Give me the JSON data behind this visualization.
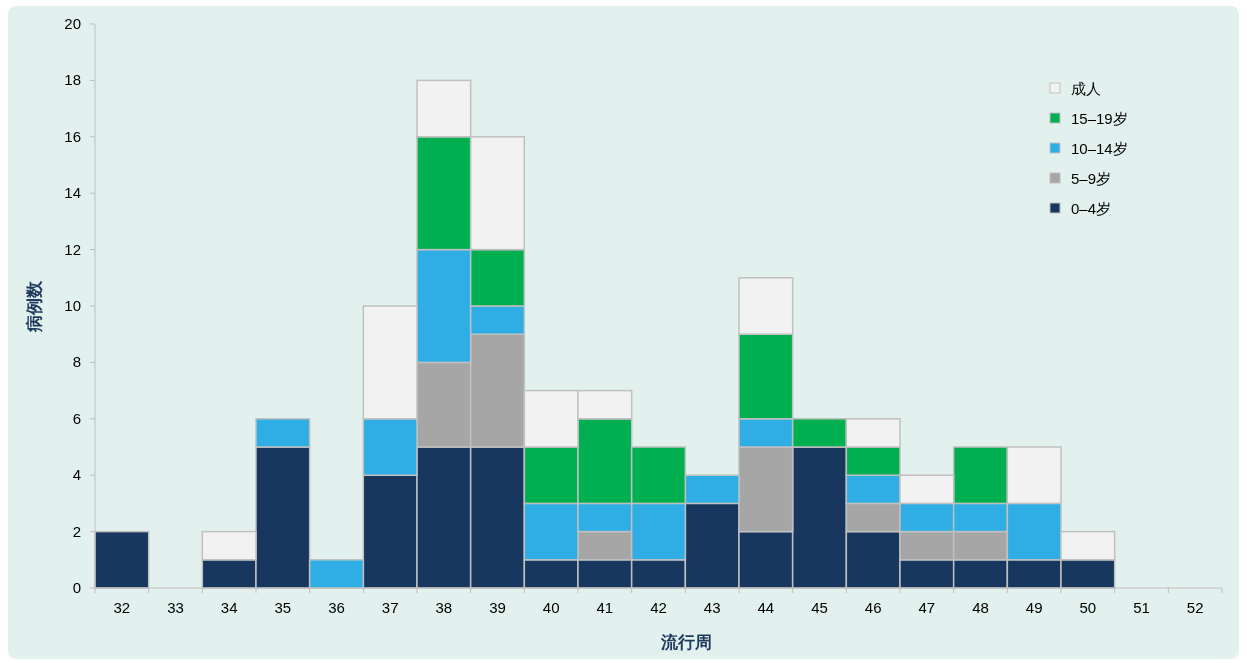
{
  "chart_data": {
    "type": "bar",
    "stacked": true,
    "xlabel": "流行周",
    "ylabel": "病例数",
    "legend": "top right",
    "categories": [
      "32",
      "33",
      "34",
      "35",
      "36",
      "37",
      "38",
      "39",
      "40",
      "41",
      "42",
      "43",
      "44",
      "45",
      "46",
      "47",
      "48",
      "49",
      "50",
      "51",
      "52"
    ],
    "ylim": [
      0,
      20
    ],
    "yticks": [
      0,
      2,
      4,
      6,
      8,
      10,
      12,
      14,
      16,
      18,
      20
    ],
    "series": [
      {
        "name": "0–4岁",
        "color": "#17375e",
        "values": [
          2,
          0,
          1,
          5,
          0,
          4,
          5,
          5,
          1,
          1,
          1,
          3,
          2,
          5,
          2,
          1,
          1,
          1,
          1,
          0,
          0
        ]
      },
      {
        "name": "5–9岁",
        "color": "#a6a6a6",
        "values": [
          0,
          0,
          0,
          0,
          0,
          0,
          3,
          4,
          0,
          1,
          0,
          0,
          3,
          0,
          1,
          1,
          1,
          0,
          0,
          0,
          0
        ]
      },
      {
        "name": "10–14岁",
        "color": "#2eaee4",
        "values": [
          0,
          0,
          0,
          1,
          1,
          2,
          4,
          1,
          2,
          1,
          2,
          1,
          1,
          0,
          1,
          1,
          1,
          2,
          0,
          0,
          0
        ]
      },
      {
        "name": "15–19岁",
        "color": "#00b050",
        "values": [
          0,
          0,
          0,
          0,
          0,
          0,
          4,
          2,
          2,
          3,
          2,
          0,
          3,
          1,
          1,
          0,
          2,
          0,
          0,
          0,
          0
        ]
      },
      {
        "name": "成人",
        "color": "#f2f2f2",
        "values": [
          0,
          0,
          1,
          0,
          0,
          4,
          2,
          4,
          2,
          1,
          0,
          0,
          2,
          0,
          1,
          1,
          0,
          2,
          1,
          0,
          0
        ]
      }
    ]
  }
}
